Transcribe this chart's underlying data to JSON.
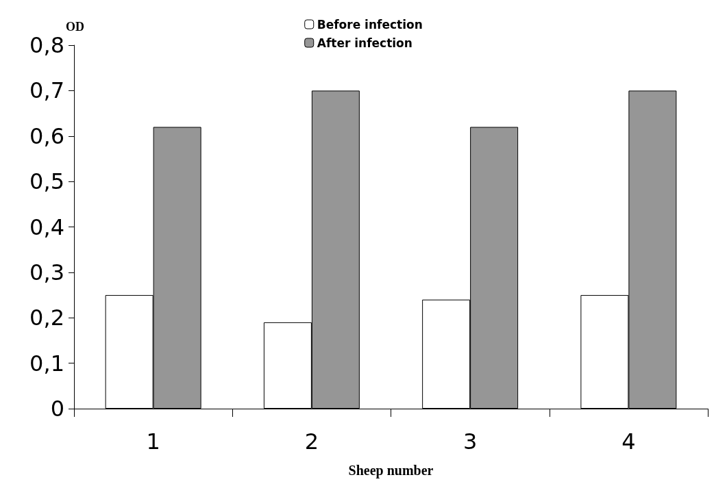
{
  "chart_data": {
    "type": "bar",
    "ylabel": "OD",
    "xlabel": "Sheep number",
    "categories": [
      "1",
      "2",
      "3",
      "4"
    ],
    "series": [
      {
        "name": "Before infection",
        "color": "#ffffff",
        "values": [
          0.25,
          0.19,
          0.24,
          0.25
        ]
      },
      {
        "name": "After infection",
        "color": "#969696",
        "values": [
          0.62,
          0.7,
          0.62,
          0.7
        ]
      }
    ],
    "ylim": [
      0,
      0.8
    ],
    "yticks": [
      0,
      {
        "value": 0.1,
        "label": "0,1"
      },
      {
        "value": 0.2,
        "label": "0,2"
      },
      {
        "value": 0.3,
        "label": "0,3"
      },
      {
        "value": 0.4,
        "label": "0,4"
      },
      {
        "value": 0.5,
        "label": "0,5"
      },
      {
        "value": 0.6,
        "label": "0,6"
      },
      {
        "value": 0.7,
        "label": "0,7"
      },
      {
        "value": 0.8,
        "label": "0,8"
      }
    ],
    "grid": false,
    "legend": "top"
  }
}
